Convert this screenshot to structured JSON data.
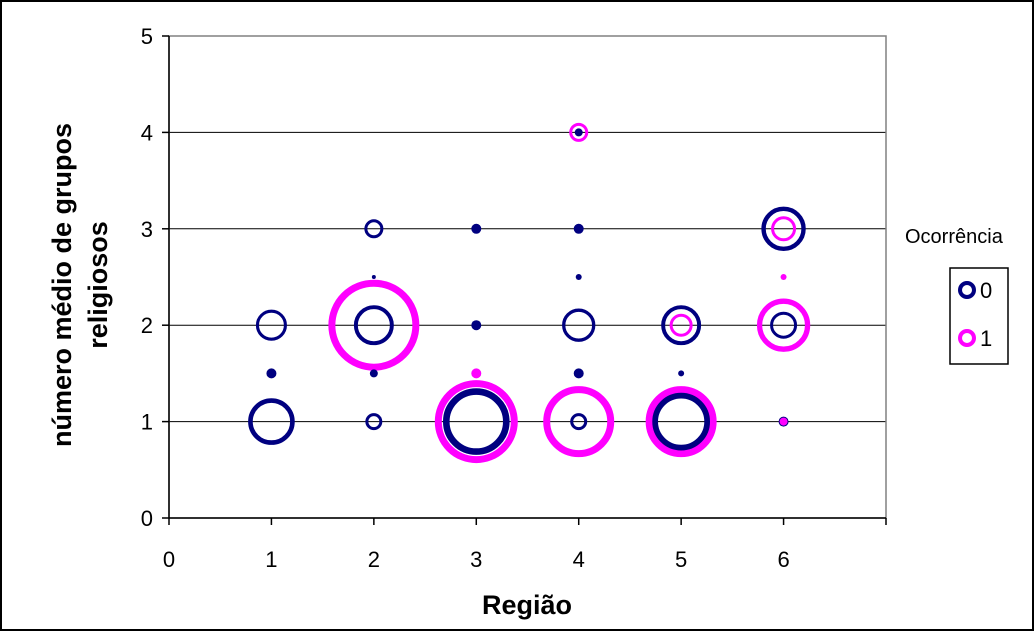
{
  "chart_data": {
    "type": "scatter",
    "subtype": "bubble",
    "xlabel": "Região",
    "ylabel": "número médio de grupos religiosos",
    "xlim": [
      0,
      7
    ],
    "ylim": [
      0,
      5
    ],
    "x_ticks": [
      "0",
      "1",
      "2",
      "3",
      "4",
      "5",
      "6"
    ],
    "y_ticks": [
      "0",
      "1",
      "2",
      "3",
      "4",
      "5"
    ],
    "grid": "horizontal",
    "legend": {
      "title": "Ocorrência",
      "position": "right"
    },
    "series": [
      {
        "name": "0",
        "color": "#000080",
        "points": [
          {
            "x": 1,
            "y": 1,
            "size": 21
          },
          {
            "x": 1,
            "y": 1.5,
            "size": 5
          },
          {
            "x": 1,
            "y": 2,
            "size": 14
          },
          {
            "x": 2,
            "y": 1,
            "size": 7
          },
          {
            "x": 2,
            "y": 1.5,
            "size": 4
          },
          {
            "x": 2,
            "y": 2,
            "size": 18
          },
          {
            "x": 2,
            "y": 2.5,
            "size": 2
          },
          {
            "x": 2,
            "y": 3,
            "size": 8
          },
          {
            "x": 3,
            "y": 1,
            "size": 30
          },
          {
            "x": 3,
            "y": 2,
            "size": 5
          },
          {
            "x": 3,
            "y": 3,
            "size": 5
          },
          {
            "x": 4,
            "y": 1,
            "size": 7
          },
          {
            "x": 4,
            "y": 1.5,
            "size": 5
          },
          {
            "x": 4,
            "y": 2,
            "size": 15
          },
          {
            "x": 4,
            "y": 2.5,
            "size": 3
          },
          {
            "x": 4,
            "y": 3,
            "size": 5
          },
          {
            "x": 4,
            "y": 4,
            "size": 4
          },
          {
            "x": 5,
            "y": 1,
            "size": 26
          },
          {
            "x": 5,
            "y": 1.5,
            "size": 3
          },
          {
            "x": 5,
            "y": 2,
            "size": 18
          },
          {
            "x": 6,
            "y": 1,
            "size": 5
          },
          {
            "x": 6,
            "y": 2,
            "size": 12
          },
          {
            "x": 6,
            "y": 3,
            "size": 20
          }
        ]
      },
      {
        "name": "1",
        "color": "#ff00ff",
        "points": [
          {
            "x": 2,
            "y": 2,
            "size": 42
          },
          {
            "x": 3,
            "y": 1,
            "size": 38
          },
          {
            "x": 3,
            "y": 1.5,
            "size": 5
          },
          {
            "x": 4,
            "y": 1,
            "size": 32
          },
          {
            "x": 4,
            "y": 4,
            "size": 8
          },
          {
            "x": 5,
            "y": 1,
            "size": 32
          },
          {
            "x": 5,
            "y": 2,
            "size": 10
          },
          {
            "x": 6,
            "y": 1,
            "size": 4
          },
          {
            "x": 6,
            "y": 2,
            "size": 24
          },
          {
            "x": 6,
            "y": 2.5,
            "size": 3
          },
          {
            "x": 6,
            "y": 3,
            "size": 11
          }
        ]
      }
    ]
  }
}
